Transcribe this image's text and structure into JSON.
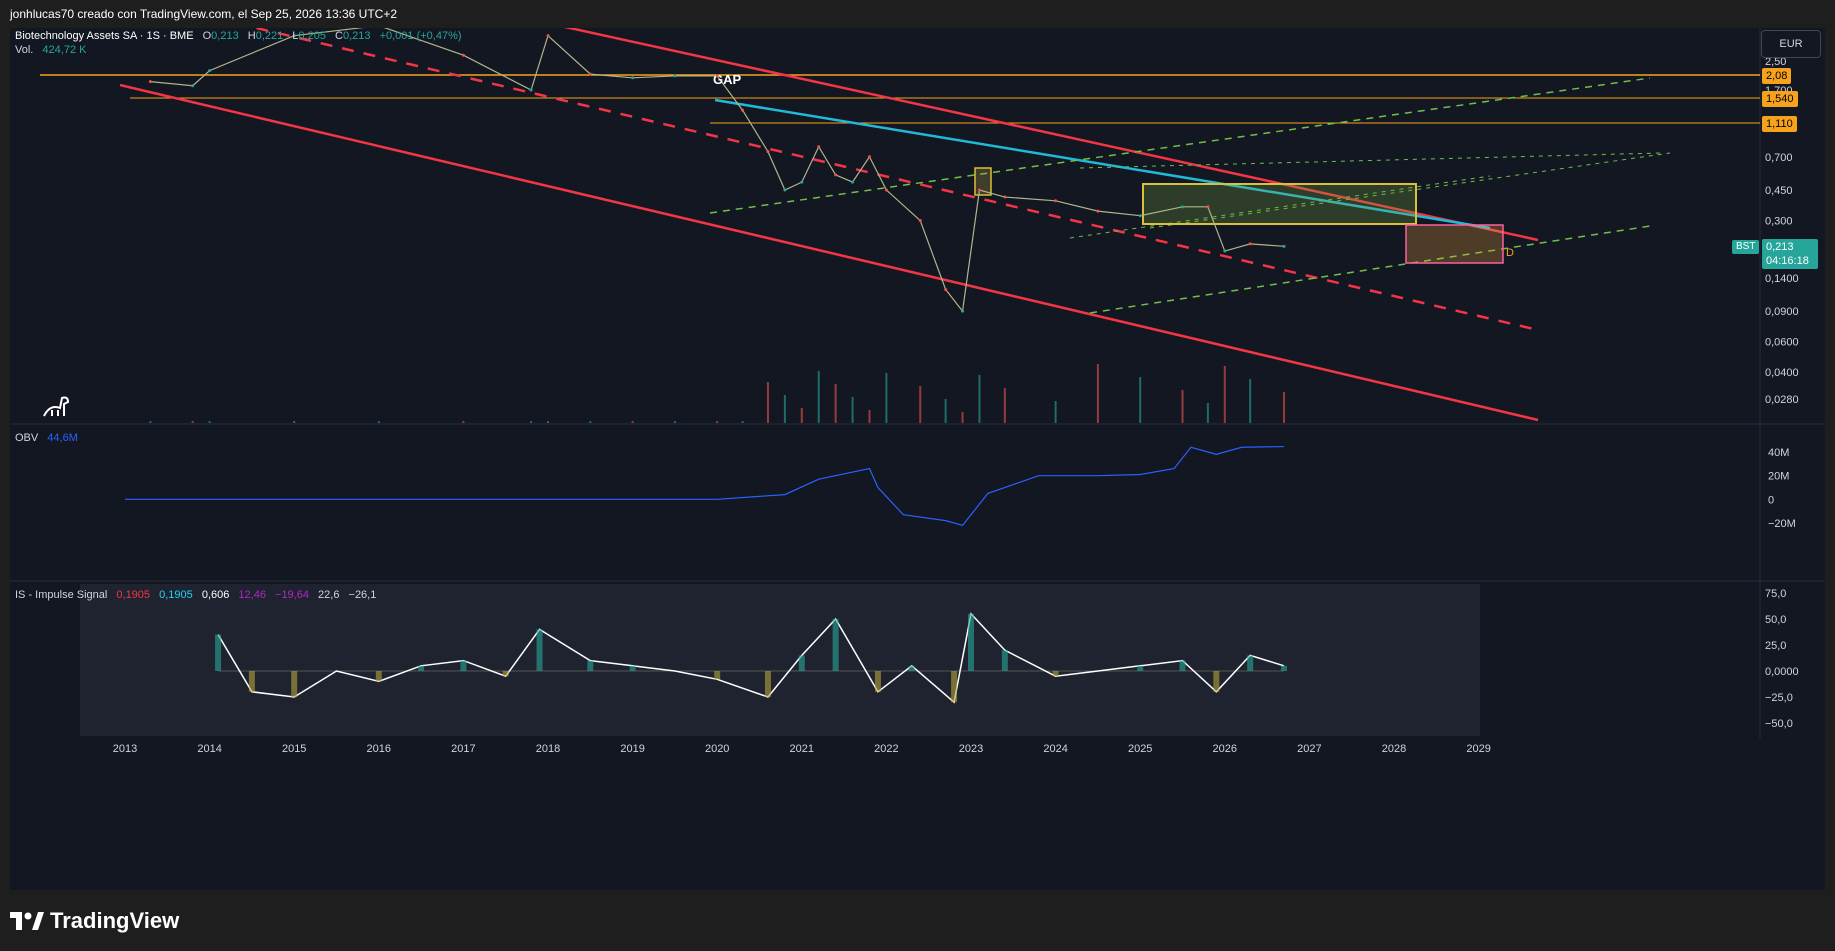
{
  "header": {
    "author_line": "jonhlucas70 creado con TradingView.com, el Sep 25, 2026 13:36 UTC+2"
  },
  "symbol": {
    "name": "Biotechnology Assets SA · 1S · BME",
    "o_label": "O",
    "o_value": "0,213",
    "h_label": "H",
    "h_value": "0,221",
    "l_label": "L",
    "l_value": "0,205",
    "c_label": "C",
    "c_value": "0,213",
    "change": "+0,001 (+0,47%)",
    "vol_label": "Vol.",
    "vol_value": "424,72 K",
    "ticker": "BST",
    "current_price": "0,213",
    "countdown": "04:16:18",
    "currency": "EUR"
  },
  "colors": {
    "background": "#131722",
    "up": "#26a69a",
    "down": "#ef5350",
    "channel": "#f23645",
    "trend": "#22b8d8",
    "orange": "#f7a21b",
    "green_dash": "#6fbf4b",
    "obv": "#2962ff",
    "purple": "#b026c9",
    "grey_band": "#7a7d85"
  },
  "annotations": {
    "gap": "GAP",
    "d_marker": "D"
  },
  "price_levels": [
    "2,08",
    "1,540",
    "1,110"
  ],
  "obv": {
    "label": "OBV",
    "value": "44,6M"
  },
  "impulse": {
    "label": "IS - Impulse Signal",
    "v1": "0,1905",
    "v2": "0,1905",
    "v3": "0,606",
    "v4": "12,46",
    "v5": "−19,64",
    "v6": "22,6",
    "v7": "−26,1"
  },
  "chart_data": [
    {
      "type": "line",
      "name": "price",
      "scale": "log",
      "y_ticks": [
        "2,50",
        "1,700",
        "0,700",
        "0,450",
        "0,300",
        "0,1400",
        "0,0900",
        "0,0600",
        "0,0400",
        "0,0280"
      ],
      "x_ticks": [
        "2013",
        "2014",
        "2015",
        "2016",
        "2017",
        "2018",
        "2019",
        "2020",
        "2021",
        "2022",
        "2023",
        "2024",
        "2025",
        "2026",
        "2027",
        "2028",
        "2029"
      ],
      "x": [
        2013.3,
        2013.8,
        2014.0,
        2015.0,
        2016.0,
        2017.0,
        2017.8,
        2018.0,
        2018.5,
        2019.0,
        2019.5,
        2020.0,
        2020.3,
        2020.6,
        2020.8,
        2021.0,
        2021.2,
        2021.4,
        2021.6,
        2021.8,
        2022.0,
        2022.4,
        2022.7,
        2022.9,
        2023.1,
        2023.4,
        2024.0,
        2024.5,
        2025.0,
        2025.5,
        2025.8,
        2026.0,
        2026.3,
        2026.7
      ],
      "y": [
        1.9,
        1.8,
        2.2,
        3.5,
        4.0,
        2.7,
        1.7,
        3.5,
        2.1,
        2.0,
        2.05,
        2.05,
        1.3,
        0.75,
        0.45,
        0.5,
        0.8,
        0.55,
        0.5,
        0.7,
        0.45,
        0.3,
        0.12,
        0.09,
        0.45,
        0.41,
        0.39,
        0.34,
        0.32,
        0.36,
        0.36,
        0.2,
        0.22,
        0.213
      ]
    },
    {
      "type": "line",
      "name": "OBV",
      "y_ticks": [
        "40M",
        "20M",
        "0",
        "−20M"
      ],
      "x": [
        2013.0,
        2014.0,
        2020.0,
        2020.8,
        2021.2,
        2021.8,
        2021.9,
        2022.2,
        2022.7,
        2022.9,
        2023.2,
        2023.8,
        2024.5,
        2025.0,
        2025.4,
        2025.6,
        2025.9,
        2026.2,
        2026.7
      ],
      "y": [
        0,
        0,
        0,
        4,
        17,
        26,
        10,
        -13,
        -18,
        -22,
        5,
        20,
        20,
        21,
        26,
        44,
        38,
        44,
        44.6
      ]
    },
    {
      "type": "line",
      "name": "IS - Impulse Signal",
      "y_ticks": [
        "75,0",
        "50,0",
        "25,0",
        "0,0000",
        "−25,0",
        "−50,0"
      ],
      "x": [
        2014.1,
        2014.5,
        2015.0,
        2015.5,
        2016.0,
        2016.5,
        2017.0,
        2017.5,
        2017.9,
        2018.5,
        2019.0,
        2019.5,
        2020.0,
        2020.6,
        2021.0,
        2021.4,
        2021.9,
        2022.3,
        2022.8,
        2023.0,
        2023.4,
        2024.0,
        2024.5,
        2025.0,
        2025.5,
        2025.9,
        2026.3,
        2026.7
      ],
      "y": [
        35,
        -20,
        -25,
        0,
        -10,
        5,
        10,
        -5,
        40,
        10,
        5,
        0,
        -8,
        -25,
        15,
        50,
        -20,
        5,
        -30,
        55,
        20,
        -5,
        0,
        5,
        10,
        -20,
        15,
        5
      ]
    }
  ]
}
